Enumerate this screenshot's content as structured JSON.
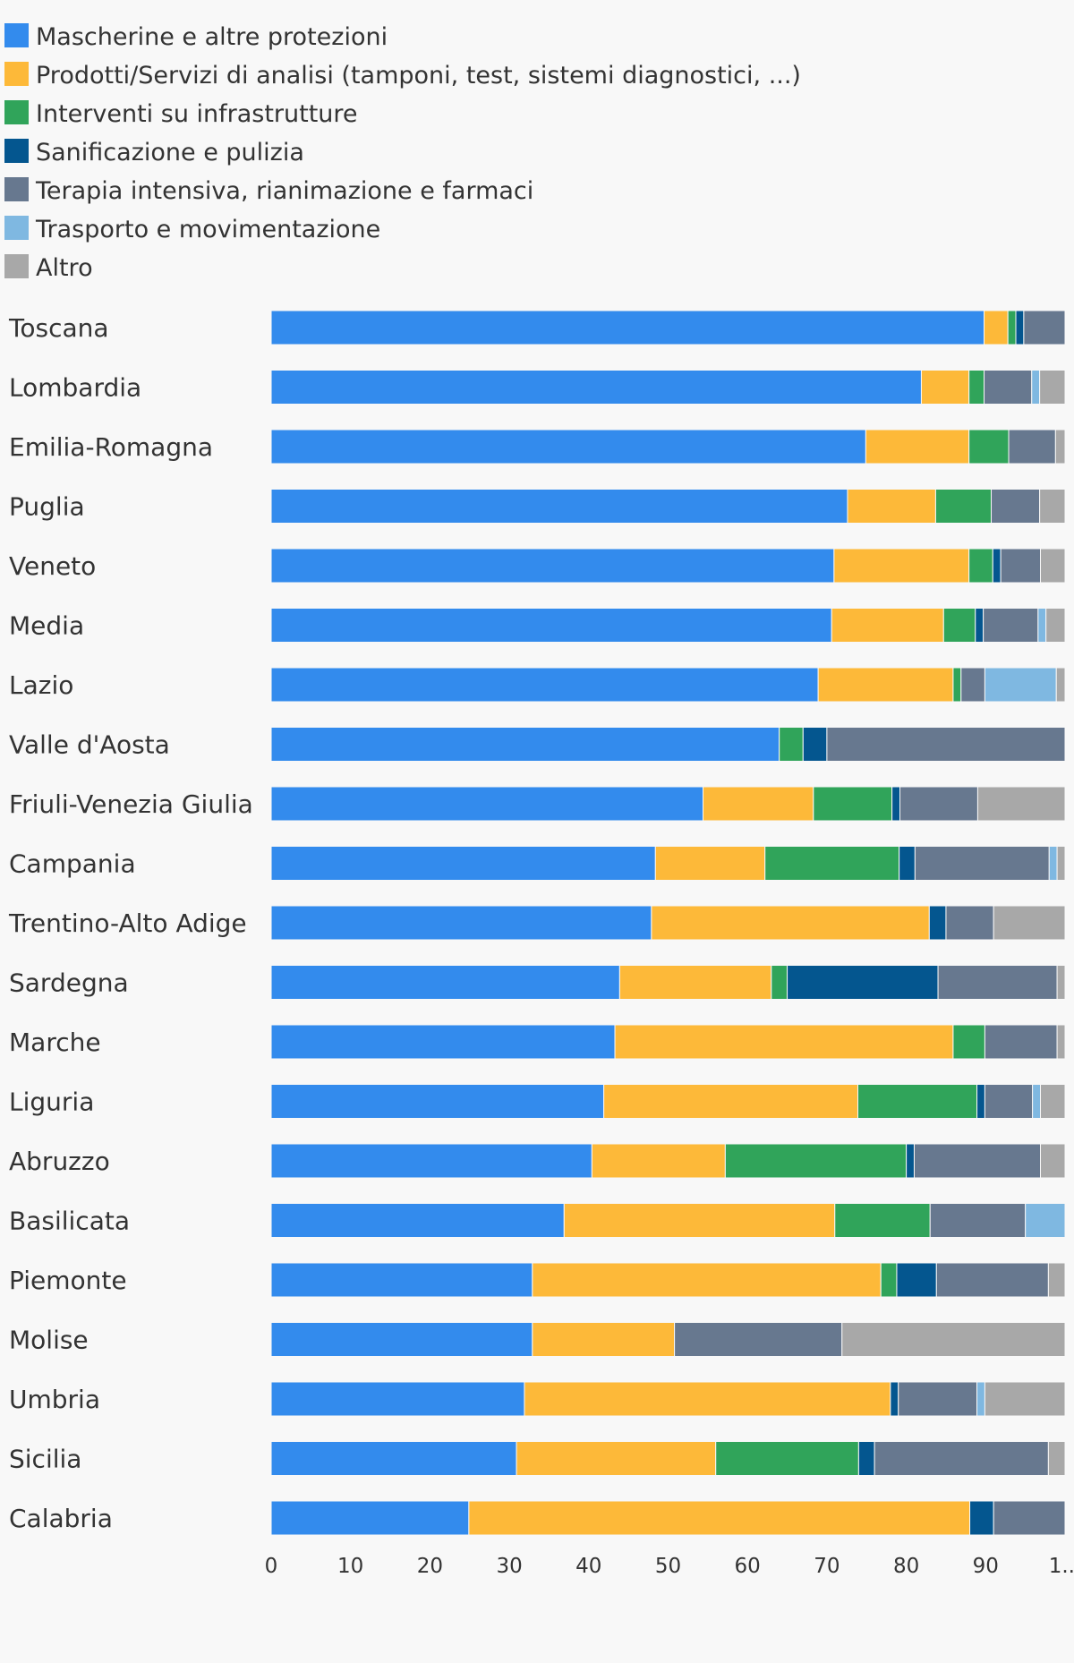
{
  "chart_data": {
    "type": "bar",
    "orientation": "horizontal",
    "stacked": true,
    "legend_position": "top-left",
    "grid": false,
    "xlim": [
      0,
      100
    ],
    "x_ticks": [
      "0",
      "10",
      "20",
      "30",
      "40",
      "50",
      "60",
      "70",
      "80",
      "90",
      "1..."
    ],
    "categories": [
      "Toscana",
      "Lombardia",
      "Emilia-Romagna",
      "Puglia",
      "Veneto",
      "Media",
      "Lazio",
      "Valle d'Aosta",
      "Friuli-Venezia Giulia",
      "Campania",
      "Trentino-Alto Adige",
      "Sardegna",
      "Marche",
      "Liguria",
      "Abruzzo",
      "Basilicata",
      "Piemonte",
      "Molise",
      "Umbria",
      "Sicilia",
      "Calabria"
    ],
    "series": [
      {
        "name": "Mascherine e altre protezioni",
        "color": "#338bed",
        "values": [
          89.8,
          81.9,
          74.9,
          72.6,
          70.9,
          70.6,
          68.9,
          64.0,
          54.4,
          48.4,
          47.9,
          43.9,
          43.3,
          41.9,
          40.4,
          36.9,
          32.9,
          32.9,
          31.9,
          30.9,
          24.9
        ]
      },
      {
        "name": "Prodotti/Servizi di analisi (tamponi, test, sistemi diagnostici, ...)",
        "color": "#fdb939",
        "values": [
          3.0,
          6.0,
          13.0,
          11.1,
          17.0,
          14.1,
          17.0,
          0,
          13.9,
          13.8,
          35.0,
          19.1,
          42.6,
          32.0,
          16.8,
          34.1,
          43.9,
          17.9,
          46.1,
          25.1,
          63.1
        ]
      },
      {
        "name": "Interventi su infrastrutture",
        "color": "#30a45a",
        "values": [
          1.0,
          1.9,
          5.0,
          7.0,
          3.0,
          4.0,
          1.0,
          3.0,
          9.9,
          16.9,
          0,
          2.0,
          4.0,
          15.0,
          22.8,
          12.0,
          2.0,
          0,
          0,
          18.0,
          0
        ]
      },
      {
        "name": "Sanificazione e pulizia",
        "color": "#04568f",
        "values": [
          1.0,
          0,
          0,
          0,
          1.0,
          1.0,
          0,
          3.0,
          1.0,
          2.0,
          2.1,
          19.0,
          0,
          1.0,
          1.0,
          0,
          5.0,
          0,
          1.0,
          2.0,
          3.0
        ]
      },
      {
        "name": "Terapia intensiva, rianimazione e farmaci",
        "color": "#67788f",
        "values": [
          5.2,
          6.0,
          5.9,
          6.1,
          5.0,
          6.9,
          3.0,
          30.0,
          9.8,
          16.9,
          6.0,
          15.0,
          9.1,
          6.0,
          15.9,
          12.0,
          14.1,
          21.1,
          9.9,
          21.9,
          9.0
        ]
      },
      {
        "name": "Trasporto e movimentazione",
        "color": "#7fb8e1",
        "values": [
          0,
          1.0,
          0,
          0,
          0,
          1.0,
          9.0,
          0,
          0,
          1.0,
          0,
          0,
          0,
          1.0,
          0,
          5.0,
          0,
          0,
          1.0,
          0,
          0
        ]
      },
      {
        "name": "Altro",
        "color": "#a8a8a8",
        "values": [
          0,
          3.2,
          1.2,
          3.2,
          3.1,
          2.4,
          1.1,
          0,
          11.0,
          1.0,
          9.0,
          1.0,
          1.0,
          3.1,
          3.1,
          0,
          2.1,
          28.1,
          10.1,
          2.1,
          0
        ]
      }
    ]
  }
}
